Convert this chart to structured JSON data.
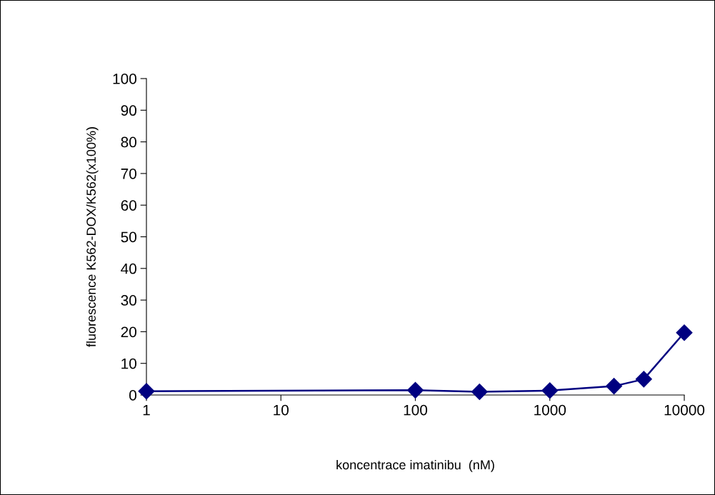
{
  "chart_data": {
    "type": "line",
    "xlabel": "koncentrace imatinibu  (nM)",
    "ylabel": "fluorescence K562-DOX/K562(x100%)",
    "x": [
      1,
      100,
      300,
      1000,
      3000,
      5000,
      10000
    ],
    "series": [
      {
        "color": "#000080",
        "values": [
          1.2,
          1.5,
          1.0,
          1.4,
          2.8,
          5.0,
          19.7
        ]
      }
    ],
    "log": "x",
    "xlim": [
      1,
      10000
    ],
    "xticks": [
      1,
      10,
      100,
      1000,
      10000
    ],
    "ylim": [
      0,
      100
    ],
    "yticks": [
      0,
      10,
      20,
      30,
      40,
      50,
      60,
      70,
      80,
      90,
      100
    ],
    "grid": false,
    "legend": false,
    "marker": "diamond",
    "line_style": "solid"
  }
}
